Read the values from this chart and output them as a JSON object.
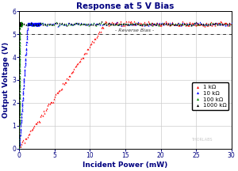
{
  "title": "Response at 5 V Bias",
  "xlabel": "Incident Power (mW)",
  "ylabel": "Output Voltage (V)",
  "xlim": [
    0,
    30
  ],
  "ylim": [
    0,
    6
  ],
  "xticks": [
    0,
    5,
    10,
    15,
    20,
    25,
    30
  ],
  "yticks": [
    0,
    1,
    2,
    3,
    4,
    5,
    6
  ],
  "reverse_bias_y": 5.0,
  "reverse_bias_label": "- Reverse Bias -",
  "saturation_voltage": 5.45,
  "responsivity": 0.45,
  "series": [
    {
      "label": "1 kΩ",
      "color": "#ff0000",
      "resistance_kohm": 1,
      "n_points": 300,
      "noise": 0.05
    },
    {
      "label": "10 kΩ",
      "color": "#0000ff",
      "resistance_kohm": 10,
      "n_points": 300,
      "noise": 0.03
    },
    {
      "label": "100 kΩ",
      "color": "#008800",
      "resistance_kohm": 100,
      "n_points": 300,
      "noise": 0.03
    },
    {
      "label": "1000 kΩ",
      "color": "#000000",
      "resistance_kohm": 1000,
      "n_points": 300,
      "noise": 0.03
    }
  ],
  "background_color": "#ffffff",
  "grid_color": "#cccccc",
  "title_color": "#000080",
  "axis_label_color": "#000080",
  "tick_label_color": "#000080",
  "watermark_color": "#c8c8c8",
  "legend_loc": "center right",
  "figsize": [
    3.0,
    2.16
  ],
  "dpi": 100,
  "marker_size": 1.5
}
